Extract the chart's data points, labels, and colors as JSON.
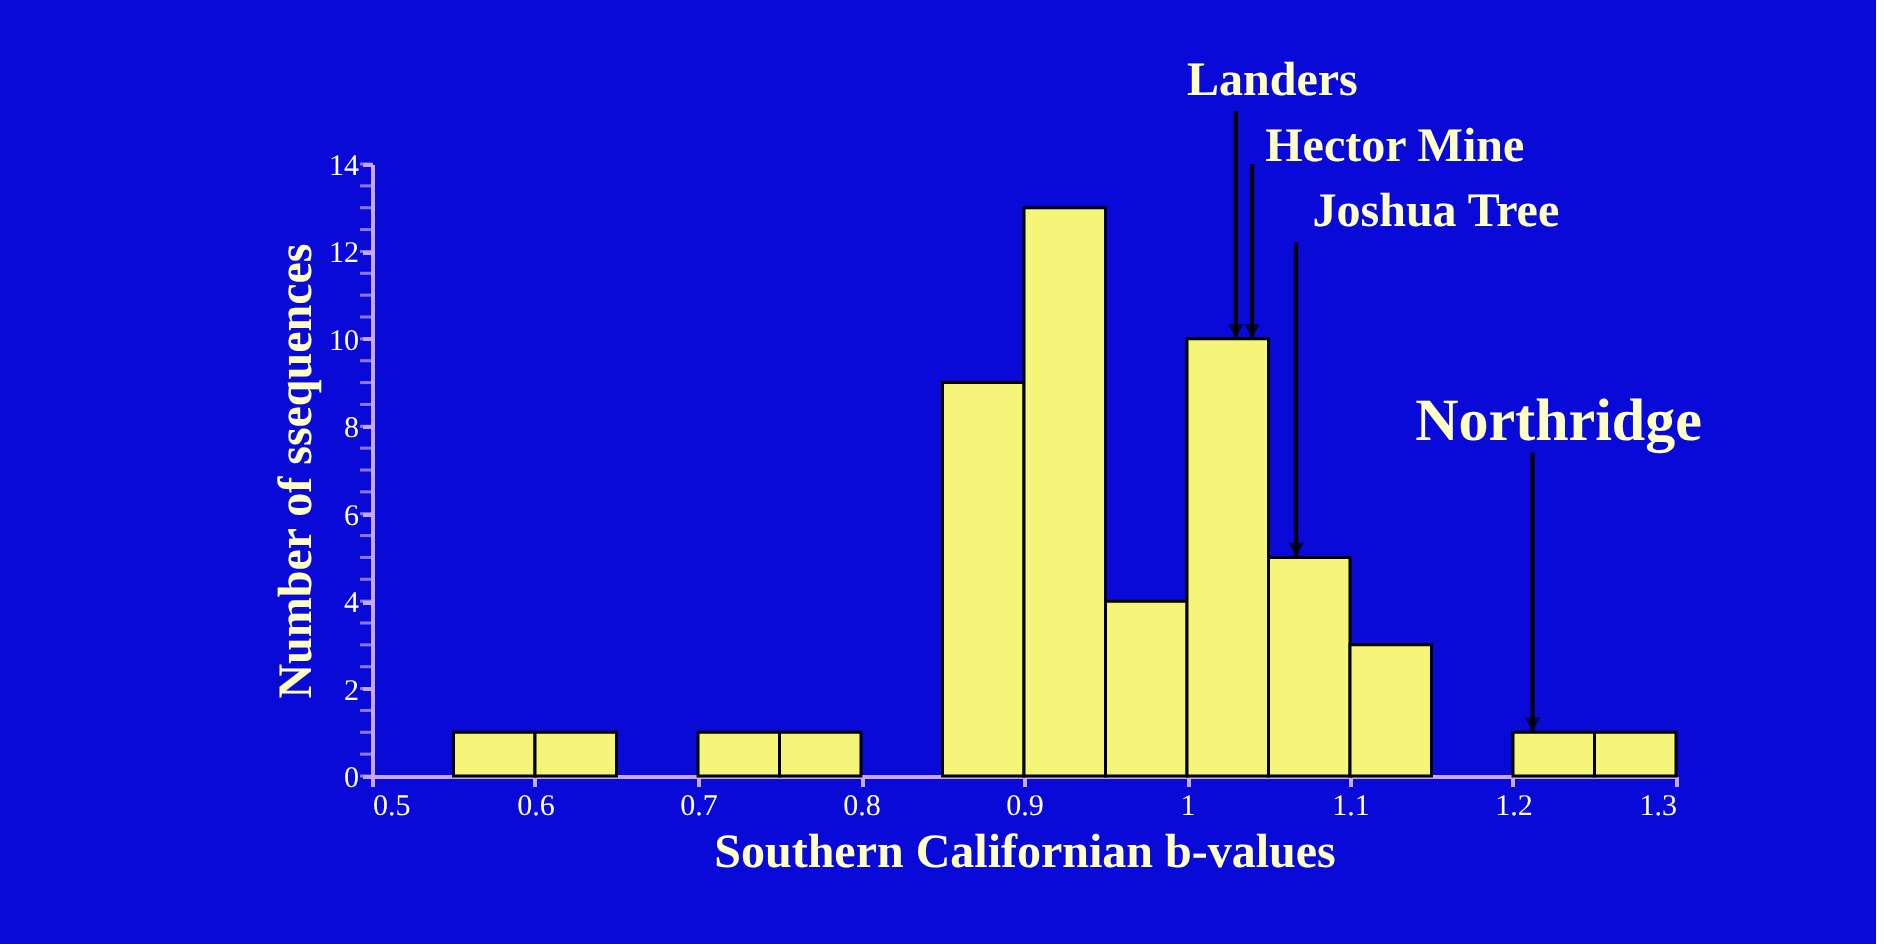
{
  "chart_data": {
    "type": "histogram",
    "xlabel": "Southern Californian b-values",
    "ylabel": "Number of ssequences",
    "bins": [
      0.55,
      0.6,
      0.65,
      0.7,
      0.75,
      0.8,
      0.85,
      0.9,
      0.95,
      1.0,
      1.05,
      1.1,
      1.15,
      1.2,
      1.25,
      1.3
    ],
    "values": [
      1,
      1,
      0,
      1,
      1,
      0,
      9,
      13,
      4,
      10,
      5,
      3,
      0,
      1,
      1
    ],
    "color": "#f5f57a",
    "xlim": [
      0.5,
      1.3
    ],
    "xticks": [
      0.5,
      0.6,
      0.7,
      0.8,
      0.9,
      1,
      1.1,
      1.2,
      1.3
    ],
    "ylim": [
      0,
      14
    ],
    "yticks": [
      0,
      2,
      4,
      6,
      8,
      10,
      12,
      14
    ],
    "grid": false,
    "annotations": [
      {
        "text": "Landers",
        "x": 1.03,
        "y": 10
      },
      {
        "text": "Hector  Mine",
        "x": 1.04,
        "y": 10
      },
      {
        "text": "Joshua  Tree",
        "x": 1.067,
        "y": 5
      },
      {
        "text": "Northridge",
        "x": 1.212,
        "y": 1
      }
    ]
  }
}
